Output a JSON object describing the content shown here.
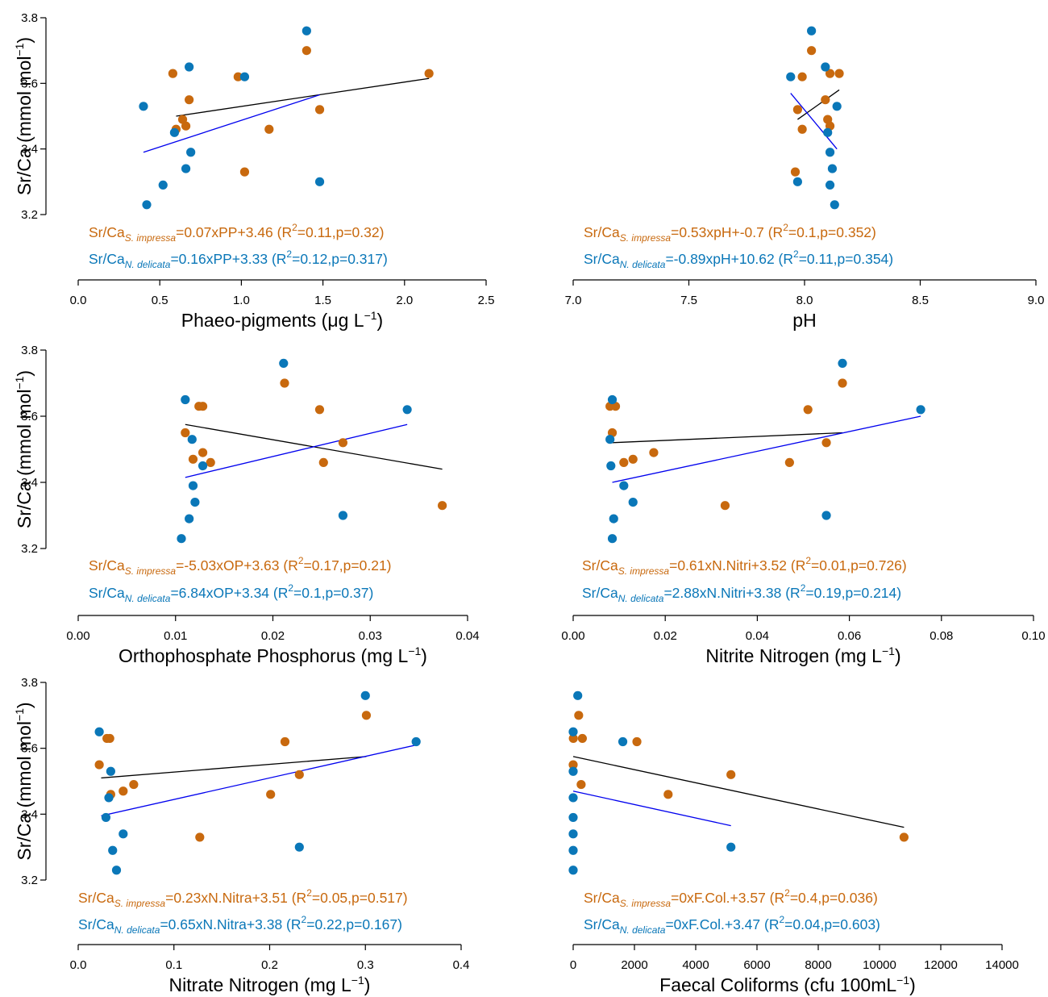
{
  "colors": {
    "s_impressa": "#C8690E",
    "n_delicata": "#0A77B8",
    "fit_s_impressa": "#000000",
    "fit_n_delicata": "#0000EE"
  },
  "chart_data": [
    {
      "type": "scatter",
      "xlabel": {
        "main": "Phaeo-pigments (μg L",
        "sup": "−1",
        "tail": ")"
      },
      "ylabel": {
        "main": "Sr/Ca (mmol mol",
        "sup": "−1",
        "tail": ")"
      },
      "xlim": [
        0.0,
        2.5
      ],
      "ylim": [
        3.2,
        3.8
      ],
      "xticks": [
        "0.0",
        "0.5",
        "1.0",
        "1.5",
        "2.0",
        "2.5"
      ],
      "yticks": [
        "3.2",
        "3.4",
        "3.6",
        "3.8"
      ],
      "series": [
        {
          "key": "s_impressa",
          "points": [
            [
              0.58,
              3.63
            ],
            [
              0.6,
              3.46
            ],
            [
              0.64,
              3.49
            ],
            [
              0.66,
              3.47
            ],
            [
              0.68,
              3.55
            ],
            [
              0.98,
              3.62
            ],
            [
              1.02,
              3.33
            ],
            [
              1.17,
              3.46
            ],
            [
              1.4,
              3.7
            ],
            [
              1.48,
              3.52
            ],
            [
              2.15,
              3.63
            ]
          ],
          "fit": [
            [
              0.6,
              3.5
            ],
            [
              2.15,
              3.615
            ]
          ]
        },
        {
          "key": "n_delicata",
          "points": [
            [
              0.4,
              3.53
            ],
            [
              0.42,
              3.23
            ],
            [
              0.52,
              3.29
            ],
            [
              0.59,
              3.45
            ],
            [
              0.66,
              3.34
            ],
            [
              0.68,
              3.65
            ],
            [
              0.69,
              3.39
            ],
            [
              1.02,
              3.62
            ],
            [
              1.4,
              3.76
            ],
            [
              1.48,
              3.3
            ]
          ],
          "fit": [
            [
              0.4,
              3.39
            ],
            [
              1.48,
              3.565
            ]
          ]
        }
      ],
      "equations": [
        {
          "key": "s_impressa",
          "pre": "Sr/Ca",
          "sub": "S. impressa",
          "mid": "=0.07xPP+3.46 (R",
          "sup": "2",
          "post": "=0.11,p=0.32)"
        },
        {
          "key": "n_delicata",
          "pre": "Sr/Ca",
          "sub": "N. delicata",
          "mid": "=0.16xPP+3.33 (R",
          "sup": "2",
          "post": "=0.12,p=0.317)"
        }
      ]
    },
    {
      "type": "scatter",
      "xlabel": {
        "main": "pH",
        "sup": "",
        "tail": ""
      },
      "ylabel": null,
      "xlim": [
        7.0,
        9.0
      ],
      "ylim": [
        3.2,
        3.8
      ],
      "xticks": [
        "7.0",
        "7.5",
        "8.0",
        "8.5",
        "9.0"
      ],
      "yticks": [],
      "series": [
        {
          "key": "s_impressa",
          "points": [
            [
              7.96,
              3.33
            ],
            [
              7.97,
              3.52
            ],
            [
              7.99,
              3.46
            ],
            [
              7.99,
              3.62
            ],
            [
              8.03,
              3.7
            ],
            [
              8.09,
              3.55
            ],
            [
              8.1,
              3.49
            ],
            [
              8.11,
              3.47
            ],
            [
              8.11,
              3.63
            ],
            [
              8.15,
              3.63
            ]
          ],
          "fit": [
            [
              7.97,
              3.49
            ],
            [
              8.15,
              3.58
            ]
          ]
        },
        {
          "key": "n_delicata",
          "points": [
            [
              7.97,
              3.3
            ],
            [
              7.94,
              3.62
            ],
            [
              8.03,
              3.76
            ],
            [
              8.09,
              3.65
            ],
            [
              8.1,
              3.45
            ],
            [
              8.11,
              3.39
            ],
            [
              8.11,
              3.29
            ],
            [
              8.12,
              3.34
            ],
            [
              8.13,
              3.23
            ],
            [
              8.14,
              3.53
            ]
          ],
          "fit": [
            [
              7.94,
              3.57
            ],
            [
              8.14,
              3.4
            ]
          ]
        }
      ],
      "equations": [
        {
          "key": "s_impressa",
          "pre": "Sr/Ca",
          "sub": "S. impressa",
          "mid": "=0.53xpH+-0.7 (R",
          "sup": "2",
          "post": "=0.1,p=0.352)"
        },
        {
          "key": "n_delicata",
          "pre": "Sr/Ca",
          "sub": "N. delicata",
          "mid": "=-0.89xpH+10.62 (R",
          "sup": "2",
          "post": "=0.11,p=0.354)"
        }
      ]
    },
    {
      "type": "scatter",
      "xlabel": {
        "main": "Orthophosphate Phosphorus (mg L",
        "sup": "−1",
        "tail": ")"
      },
      "ylabel": {
        "main": "Sr/Ca (mmol mol",
        "sup": "−1",
        "tail": ")"
      },
      "xlim": [
        0.0,
        0.04
      ],
      "ylim": [
        3.2,
        3.8
      ],
      "xticks": [
        "0.00",
        "0.01",
        "0.02",
        "0.03",
        "0.04"
      ],
      "yticks": [
        "3.2",
        "3.4",
        "3.6",
        "3.8"
      ],
      "series": [
        {
          "key": "s_impressa",
          "points": [
            [
              0.011,
              3.55
            ],
            [
              0.0118,
              3.47
            ],
            [
              0.0124,
              3.63
            ],
            [
              0.0128,
              3.63
            ],
            [
              0.0128,
              3.49
            ],
            [
              0.0136,
              3.46
            ],
            [
              0.0212,
              3.7
            ],
            [
              0.0248,
              3.62
            ],
            [
              0.0252,
              3.46
            ],
            [
              0.0272,
              3.52
            ],
            [
              0.0374,
              3.33
            ]
          ],
          "fit": [
            [
              0.011,
              3.575
            ],
            [
              0.0374,
              3.44
            ]
          ]
        },
        {
          "key": "n_delicata",
          "points": [
            [
              0.0106,
              3.23
            ],
            [
              0.011,
              3.65
            ],
            [
              0.0114,
              3.29
            ],
            [
              0.0117,
              3.53
            ],
            [
              0.0118,
              3.39
            ],
            [
              0.012,
              3.34
            ],
            [
              0.0128,
              3.45
            ],
            [
              0.0211,
              3.76
            ],
            [
              0.0272,
              3.3
            ],
            [
              0.0338,
              3.62
            ]
          ],
          "fit": [
            [
              0.011,
              3.415
            ],
            [
              0.0338,
              3.575
            ]
          ]
        }
      ],
      "equations": [
        {
          "key": "s_impressa",
          "pre": "Sr/Ca",
          "sub": "S. impressa",
          "mid": "=-5.03xOP+3.63 (R",
          "sup": "2",
          "post": "=0.17,p=0.21)"
        },
        {
          "key": "n_delicata",
          "pre": "Sr/Ca",
          "sub": "N. delicata",
          "mid": "=6.84xOP+3.34 (R",
          "sup": "2",
          "post": "=0.1,p=0.37)"
        }
      ]
    },
    {
      "type": "scatter",
      "xlabel": {
        "main": "Nitrite Nitrogen (mg L",
        "sup": "−1",
        "tail": ")"
      },
      "ylabel": null,
      "xlim": [
        0.0,
        0.1
      ],
      "ylim": [
        3.2,
        3.8
      ],
      "xticks": [
        "0.00",
        "0.02",
        "0.04",
        "0.06",
        "0.08",
        "0.10"
      ],
      "yticks": [],
      "series": [
        {
          "key": "s_impressa",
          "points": [
            [
              0.008,
              3.63
            ],
            [
              0.0085,
              3.55
            ],
            [
              0.0092,
              3.63
            ],
            [
              0.011,
              3.46
            ],
            [
              0.013,
              3.47
            ],
            [
              0.0175,
              3.49
            ],
            [
              0.033,
              3.33
            ],
            [
              0.047,
              3.46
            ],
            [
              0.051,
              3.62
            ],
            [
              0.055,
              3.52
            ],
            [
              0.0585,
              3.7
            ]
          ],
          "fit": [
            [
              0.0085,
              3.52
            ],
            [
              0.0585,
              3.55
            ]
          ]
        },
        {
          "key": "n_delicata",
          "points": [
            [
              0.008,
              3.53
            ],
            [
              0.0082,
              3.45
            ],
            [
              0.0085,
              3.65
            ],
            [
              0.0085,
              3.23
            ],
            [
              0.0088,
              3.29
            ],
            [
              0.011,
              3.39
            ],
            [
              0.013,
              3.34
            ],
            [
              0.055,
              3.3
            ],
            [
              0.0585,
              3.76
            ],
            [
              0.0755,
              3.62
            ]
          ],
          "fit": [
            [
              0.0085,
              3.4
            ],
            [
              0.0755,
              3.6
            ]
          ]
        }
      ],
      "equations": [
        {
          "key": "s_impressa",
          "pre": "Sr/Ca",
          "sub": "S. impressa",
          "mid": "=0.61xN.Nitri+3.52 (R",
          "sup": "2",
          "post": "=0.01,p=0.726)"
        },
        {
          "key": "n_delicata",
          "pre": "Sr/Ca",
          "sub": "N. delicata",
          "mid": "=2.88xN.Nitri+3.38 (R",
          "sup": "2",
          "post": "=0.19,p=0.214)"
        }
      ]
    },
    {
      "type": "scatter",
      "xlabel": {
        "main": "Nitrate Nitrogen (mg L",
        "sup": "−1",
        "tail": ")"
      },
      "ylabel": {
        "main": "Sr/Ca (mmol mol",
        "sup": "−1",
        "tail": ")"
      },
      "xlim": [
        0.0,
        0.4
      ],
      "ylim": [
        3.2,
        3.8
      ],
      "xticks": [
        "0.0",
        "0.1",
        "0.2",
        "0.3",
        "0.4"
      ],
      "yticks": [
        "3.2",
        "3.4",
        "3.6",
        "3.8"
      ],
      "series": [
        {
          "key": "s_impressa",
          "points": [
            [
              0.022,
              3.55
            ],
            [
              0.03,
              3.63
            ],
            [
              0.033,
              3.63
            ],
            [
              0.034,
              3.46
            ],
            [
              0.047,
              3.47
            ],
            [
              0.058,
              3.49
            ],
            [
              0.127,
              3.33
            ],
            [
              0.201,
              3.46
            ],
            [
              0.216,
              3.62
            ],
            [
              0.231,
              3.52
            ],
            [
              0.301,
              3.7
            ]
          ],
          "fit": [
            [
              0.024,
              3.51
            ],
            [
              0.301,
              3.575
            ]
          ]
        },
        {
          "key": "n_delicata",
          "points": [
            [
              0.022,
              3.65
            ],
            [
              0.029,
              3.39
            ],
            [
              0.032,
              3.45
            ],
            [
              0.034,
              3.53
            ],
            [
              0.036,
              3.29
            ],
            [
              0.04,
              3.23
            ],
            [
              0.047,
              3.34
            ],
            [
              0.231,
              3.3
            ],
            [
              0.3,
              3.76
            ],
            [
              0.353,
              3.62
            ]
          ],
          "fit": [
            [
              0.024,
              3.395
            ],
            [
              0.353,
              3.61
            ]
          ]
        }
      ],
      "equations": [
        {
          "key": "s_impressa",
          "pre": "Sr/Ca",
          "sub": "S. impressa",
          "mid": "=0.23xN.Nitra+3.51 (R",
          "sup": "2",
          "post": "=0.05,p=0.517)"
        },
        {
          "key": "n_delicata",
          "pre": "Sr/Ca",
          "sub": "N. delicata",
          "mid": "=0.65xN.Nitra+3.38 (R",
          "sup": "2",
          "post": "=0.22,p=0.167)"
        }
      ]
    },
    {
      "type": "scatter",
      "xlabel": {
        "main": "Faecal Coliforms (cfu 100mL",
        "sup": "−1",
        "tail": ")"
      },
      "ylabel": null,
      "xlim": [
        0,
        14000
      ],
      "ylim": [
        3.2,
        3.8
      ],
      "xticks": [
        "0",
        "2000",
        "4000",
        "6000",
        "8000",
        "10000",
        "12000",
        "14000"
      ],
      "yticks": [],
      "series": [
        {
          "key": "s_impressa",
          "points": [
            [
              0,
              3.55
            ],
            [
              5,
              3.63
            ],
            [
              180,
              3.7
            ],
            [
              260,
              3.49
            ],
            [
              300,
              3.63
            ],
            [
              2080,
              3.62
            ],
            [
              3100,
              3.46
            ],
            [
              5150,
              3.52
            ],
            [
              10800,
              3.33
            ]
          ],
          "fit": [
            [
              0,
              3.575
            ],
            [
              10800,
              3.36
            ]
          ]
        },
        {
          "key": "n_delicata",
          "points": [
            [
              0,
              3.65
            ],
            [
              0,
              3.53
            ],
            [
              0,
              3.45
            ],
            [
              0,
              3.39
            ],
            [
              0,
              3.34
            ],
            [
              0,
              3.29
            ],
            [
              0,
              3.23
            ],
            [
              150,
              3.76
            ],
            [
              1620,
              3.62
            ],
            [
              5150,
              3.3
            ]
          ],
          "fit": [
            [
              0,
              3.47
            ],
            [
              5150,
              3.365
            ]
          ]
        }
      ],
      "equations": [
        {
          "key": "s_impressa",
          "pre": "Sr/Ca",
          "sub": "S. impressa",
          "mid": "=0xF.Col.+3.57 (R",
          "sup": "2",
          "post": "=0.4,p=0.036)"
        },
        {
          "key": "n_delicata",
          "pre": "Sr/Ca",
          "sub": "N. delicata",
          "mid": "=0xF.Col.+3.47 (R",
          "sup": "2",
          "post": "=0.04,p=0.603)"
        }
      ]
    }
  ]
}
